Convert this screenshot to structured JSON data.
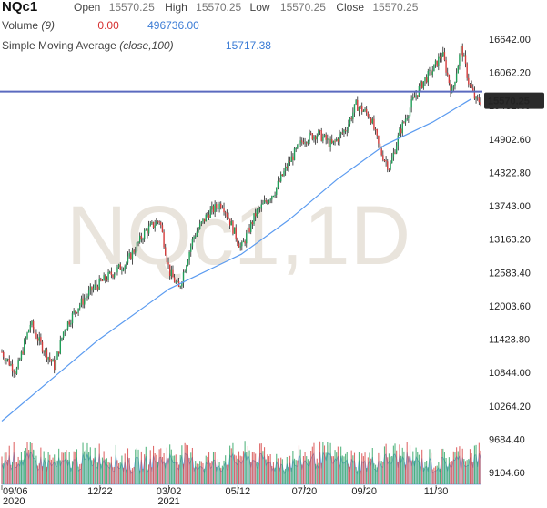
{
  "header": {
    "symbol": "NQc1",
    "open_label": "Open",
    "open_value": "15570.25",
    "high_label": "High",
    "high_value": "15570.25",
    "low_label": "Low",
    "low_value": "15570.25",
    "close_label": "Close",
    "close_value": "15570.25",
    "volume_label": "Volume",
    "volume_period": "(9)",
    "volume_value_1": "0.00",
    "volume_value_2": "496736.00",
    "sma_label": "Simple Moving Average",
    "sma_params": "(close,100)",
    "sma_value": "15717.38"
  },
  "watermark": "NQc1,1D",
  "chart_data": {
    "type": "candlestick",
    "price_axis": {
      "ticks": [
        "16642.00",
        "16062.20",
        "15482.40",
        "14902.60",
        "14322.80",
        "13743.00",
        "13163.20",
        "12583.40",
        "12003.60",
        "11423.80",
        "10844.00",
        "10264.20",
        "9684.40",
        "9104.60"
      ],
      "tick_values": [
        16642.0,
        16062.2,
        15482.4,
        14902.6,
        14322.8,
        13743.0,
        13163.2,
        12583.4,
        12003.6,
        11423.8,
        10844.0,
        10264.2,
        9684.4,
        9104.6
      ],
      "visible_range": [
        9000,
        16900
      ]
    },
    "last_price_label": "15570.25",
    "horizontal_line": 15570.25,
    "x_axis": {
      "ticks": [
        {
          "label": "09/06",
          "sub": "2020",
          "pos": 0.0
        },
        {
          "label": "12/22",
          "sub": "",
          "pos": 0.205
        },
        {
          "label": "03/02",
          "sub": "2021",
          "pos": 0.349
        },
        {
          "label": "05/12",
          "sub": "",
          "pos": 0.493
        },
        {
          "label": "07/20",
          "sub": "",
          "pos": 0.632
        },
        {
          "label": "09/20",
          "sub": "",
          "pos": 0.757
        },
        {
          "label": "11/30",
          "sub": "",
          "pos": 0.907
        }
      ]
    },
    "price_path": [
      [
        0.0,
        11200
      ],
      [
        0.03,
        10850
      ],
      [
        0.06,
        11700
      ],
      [
        0.08,
        11350
      ],
      [
        0.11,
        10950
      ],
      [
        0.13,
        11600
      ],
      [
        0.16,
        12000
      ],
      [
        0.19,
        12300
      ],
      [
        0.22,
        12500
      ],
      [
        0.26,
        12750
      ],
      [
        0.3,
        13300
      ],
      [
        0.33,
        13500
      ],
      [
        0.35,
        12600
      ],
      [
        0.37,
        12300
      ],
      [
        0.4,
        13200
      ],
      [
        0.43,
        13600
      ],
      [
        0.46,
        13800
      ],
      [
        0.48,
        13400
      ],
      [
        0.5,
        13000
      ],
      [
        0.53,
        13600
      ],
      [
        0.57,
        14000
      ],
      [
        0.6,
        14500
      ],
      [
        0.63,
        14900
      ],
      [
        0.66,
        15000
      ],
      [
        0.69,
        14800
      ],
      [
        0.72,
        15100
      ],
      [
        0.74,
        15500
      ],
      [
        0.77,
        15300
      ],
      [
        0.79,
        14700
      ],
      [
        0.81,
        14400
      ],
      [
        0.83,
        15000
      ],
      [
        0.86,
        15600
      ],
      [
        0.88,
        15900
      ],
      [
        0.9,
        16100
      ],
      [
        0.92,
        16400
      ],
      [
        0.94,
        15700
      ],
      [
        0.96,
        16500
      ],
      [
        0.975,
        15900
      ],
      [
        0.99,
        15570
      ]
    ],
    "sma_path": [
      [
        0.0,
        10000
      ],
      [
        0.1,
        10700
      ],
      [
        0.2,
        11400
      ],
      [
        0.3,
        12000
      ],
      [
        0.35,
        12300
      ],
      [
        0.4,
        12500
      ],
      [
        0.5,
        12900
      ],
      [
        0.6,
        13500
      ],
      [
        0.7,
        14200
      ],
      [
        0.8,
        14800
      ],
      [
        0.9,
        15200
      ],
      [
        0.98,
        15600
      ]
    ],
    "sma_value": 15717.38,
    "volume_axis": {
      "ticks": [
        "9684.40",
        "9104.60"
      ]
    }
  },
  "colors": {
    "up": "#1f9e57",
    "down": "#d43a3a",
    "wick": "#222222",
    "sma": "#5b9bf0",
    "hline": "#5b6abf",
    "price_tag_bg": "#2b2b2b",
    "volume_fill": "#a9c9ef"
  }
}
